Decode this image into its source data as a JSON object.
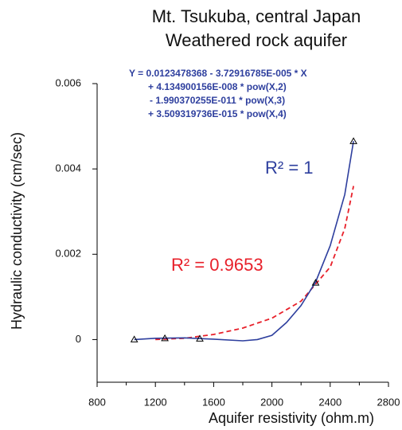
{
  "chart_data": {
    "type": "scatter",
    "title": [
      "Mt. Tsukuba, central Japan",
      "Weathered rock aquifer"
    ],
    "equation": [
      "Y = 0.0123478368 - 3.72916785E-005 * X",
      "+ 4.134900156E-008 * pow(X,2)",
      "- 1.990370255E-011 * pow(X,3)",
      "+ 3.509319736E-015 * pow(X,4)"
    ],
    "x_label": "Aquifer resistivity (ohm.m)",
    "y_label": "Hydraulic conductivity (cm/sec)",
    "xlim": [
      800,
      2800
    ],
    "xticks": [
      800,
      1200,
      1600,
      2000,
      2400,
      2800
    ],
    "ylim": [
      -0.001,
      0.006
    ],
    "yticks": [
      0,
      0.002,
      0.004,
      0.006
    ],
    "series": [
      {
        "color": "#000000",
        "marker": "triangle",
        "x": [
          1055,
          1265,
          1505,
          2300,
          2560
        ],
        "values": [
          0,
          3e-05,
          2e-05,
          0.00133,
          0.00465
        ]
      },
      {
        "color": "#2e3f9e",
        "line": "solid",
        "x": [
          1055,
          1200,
          1400,
          1600,
          1800,
          1900,
          2000,
          2100,
          2200,
          2300,
          2400,
          2500,
          2560
        ],
        "values": [
          0,
          3e-05,
          4e-05,
          1e-05,
          -3e-05,
          0.0,
          0.0001,
          0.0004,
          0.0008,
          0.00135,
          0.0022,
          0.0034,
          0.00465
        ]
      },
      {
        "color": "#e8202a",
        "line": "dashed",
        "x": [
          1200,
          1400,
          1600,
          1800,
          2000,
          2200,
          2400,
          2500,
          2560
        ],
        "values": [
          0,
          3e-05,
          0.00012,
          0.00027,
          0.0005,
          0.0009,
          0.0017,
          0.0026,
          0.0036
        ]
      }
    ],
    "annotations": [
      {
        "text": "R² = 1",
        "color": "#2e3f9e"
      },
      {
        "text": "R² = 0.9653",
        "color": "#e8202a"
      }
    ]
  }
}
